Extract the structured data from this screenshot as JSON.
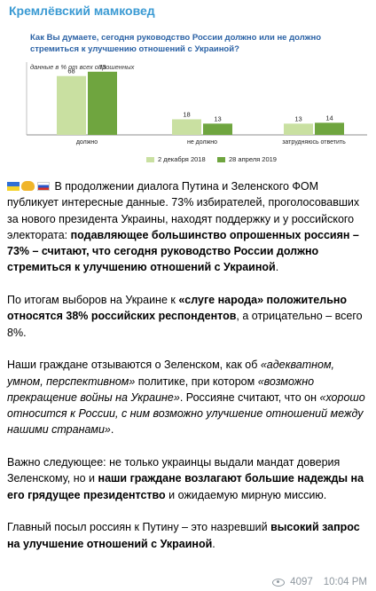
{
  "channel": {
    "title": "Кремлёвский мамковед"
  },
  "chart": {
    "question": "Как Вы думаете, сегодня руководство России должно или не должно стремиться к улучшению отношений с Украиной?",
    "subtitle": "данные в % от всех опрошенных",
    "colors": {
      "series1": "#c9e0a1",
      "series2": "#6fa53f",
      "question": "#2b62a5"
    }
  },
  "chart_data": {
    "type": "bar",
    "categories": [
      "должно",
      "не должно",
      "затрудняюсь ответить"
    ],
    "series": [
      {
        "name": "2 декабря 2018",
        "values": [
          68,
          18,
          13
        ]
      },
      {
        "name": "28 апреля 2019",
        "values": [
          73,
          13,
          14
        ]
      }
    ],
    "ylim": [
      0,
      80
    ],
    "grid": false,
    "legend": "bottom"
  },
  "message": {
    "p1_a": " В продолжении диалога Путина и Зеленского ФОМ публикует интересные данные. 73% избирателей, проголосовавших за нового президента Украины, находят поддержку и у российского электората: ",
    "p1_b": "подавляющее большинство опрошенных россиян – 73% – считают, что сегодня руководство России должно стремиться к улучшению отношений с Украиной",
    "p1_c": ".",
    "p2_a": "По итогам выборов на Украине к ",
    "p2_b": "«слуге народа» положительно относятся 38% российских респондентов",
    "p2_c": ", а отрицательно – всего 8%.",
    "p3_a": "Наши граждане отзываются о Зеленском, как об ",
    "p3_b": "«адекватном, умном, перспективном»",
    "p3_c": " политике, при котором ",
    "p3_d": "«возможно прекращение войны на Украине»",
    "p3_e": ". Россияне считают, что он ",
    "p3_f": "«хорошо относится к России, с ним возможно улучшение отношений между нашими странами»",
    "p3_g": ".",
    "p4_a": "Важно следующее: не только украинцы выдали мандат доверия Зеленскому, но и ",
    "p4_b": "наши граждане возлагают большие надежды на его грядущее президентство",
    "p4_c": " и ожидаемую мирную миссию.",
    "p5_a": "Главный посыл россиян к Путину – это назревший ",
    "p5_b": "высокий запрос на улучшение отношений с Украиной",
    "p5_c": "."
  },
  "footer": {
    "views": "4097",
    "time": "10:04 PM"
  },
  "icons": {
    "views": "eye-icon",
    "flags": [
      "ukraine-flag-icon",
      "handshake-icon",
      "russia-flag-icon"
    ]
  }
}
